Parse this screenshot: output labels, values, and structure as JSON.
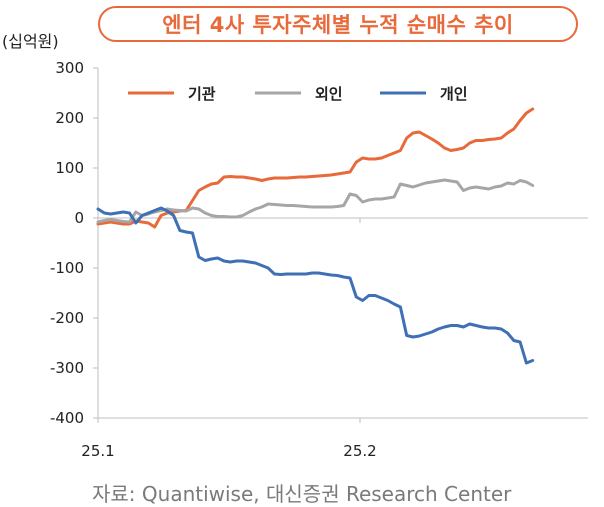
{
  "chart_data": {
    "type": "line",
    "title": "엔터 4사 투자주체별 누적 순매수 추이",
    "ylabel": "(십억원)",
    "xlabel": "",
    "ylim": [
      -400,
      300
    ],
    "yticks": [
      "300",
      "200",
      "100",
      "0",
      "-100",
      "-200",
      "-300",
      "-400"
    ],
    "ytick_values": [
      300,
      200,
      100,
      0,
      -100,
      -200,
      -300,
      -400
    ],
    "xticks": [
      "25.1",
      "25.2"
    ],
    "xtick_values": [
      0,
      52
    ],
    "legend_position": "top",
    "series": [
      {
        "name": "기관",
        "color": "#e8693a",
        "values": [
          -12,
          -10,
          -8,
          -10,
          -12,
          -12,
          -6,
          -8,
          -10,
          -18,
          5,
          10,
          12,
          14,
          15,
          35,
          55,
          62,
          68,
          70,
          82,
          83,
          82,
          82,
          80,
          78,
          75,
          78,
          80,
          80,
          80,
          81,
          82,
          82,
          83,
          84,
          85,
          86,
          88,
          90,
          92,
          112,
          120,
          118,
          118,
          120,
          125,
          130,
          135,
          160,
          170,
          172,
          165,
          158,
          150,
          140,
          135,
          137,
          140,
          150,
          155,
          155,
          157,
          158,
          160,
          170,
          178,
          195,
          210,
          218
        ]
      },
      {
        "name": "외인",
        "color": "#a6a6a6",
        "values": [
          -8,
          -5,
          -3,
          -5,
          -7,
          -8,
          12,
          5,
          8,
          12,
          15,
          18,
          16,
          15,
          14,
          20,
          18,
          10,
          5,
          3,
          3,
          2,
          2,
          5,
          12,
          18,
          22,
          28,
          27,
          26,
          25,
          25,
          24,
          23,
          22,
          22,
          22,
          22,
          23,
          25,
          48,
          45,
          32,
          36,
          38,
          38,
          40,
          42,
          68,
          65,
          62,
          66,
          70,
          72,
          74,
          76,
          74,
          72,
          55,
          60,
          62,
          60,
          58,
          62,
          64,
          70,
          68,
          75,
          72,
          65
        ]
      },
      {
        "name": "개인",
        "color": "#3f6fb5",
        "values": [
          18,
          10,
          8,
          10,
          12,
          10,
          -10,
          5,
          10,
          15,
          20,
          14,
          5,
          -25,
          -28,
          -30,
          -78,
          -85,
          -82,
          -80,
          -86,
          -88,
          -86,
          -86,
          -88,
          -90,
          -95,
          -100,
          -112,
          -113,
          -112,
          -112,
          -112,
          -112,
          -110,
          -110,
          -112,
          -114,
          -115,
          -118,
          -120,
          -158,
          -165,
          -155,
          -155,
          -160,
          -165,
          -172,
          -178,
          -235,
          -238,
          -236,
          -232,
          -228,
          -222,
          -218,
          -215,
          -215,
          -218,
          -212,
          -215,
          -218,
          -220,
          -220,
          -222,
          -230,
          -245,
          -248,
          -290,
          -285
        ]
      }
    ]
  }
}
